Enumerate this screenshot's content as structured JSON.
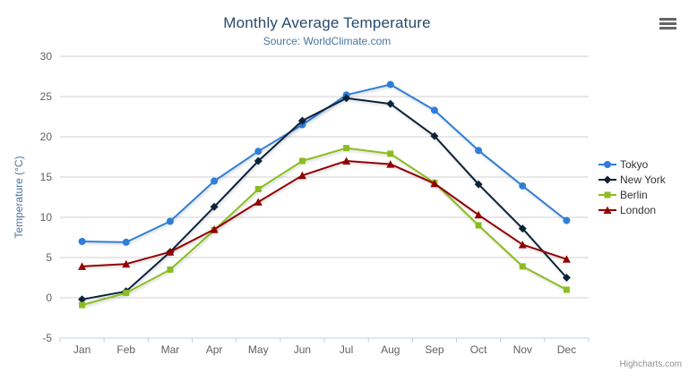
{
  "chart_data": {
    "type": "line",
    "title": "Monthly Average Temperature",
    "subtitle": "Source: WorldClimate.com",
    "xlabel": "",
    "ylabel": "Temperature (°C)",
    "categories": [
      "Jan",
      "Feb",
      "Mar",
      "Apr",
      "May",
      "Jun",
      "Jul",
      "Aug",
      "Sep",
      "Oct",
      "Nov",
      "Dec"
    ],
    "ylim": [
      -5,
      30
    ],
    "yticks": [
      -5,
      0,
      5,
      10,
      15,
      20,
      25,
      30
    ],
    "grid": true,
    "legend_position": "right",
    "series": [
      {
        "name": "Tokyo",
        "color": "#2f7ed8",
        "marker": "circle",
        "values": [
          7.0,
          6.9,
          9.5,
          14.5,
          18.2,
          21.5,
          25.2,
          26.5,
          23.3,
          18.3,
          13.9,
          9.6
        ]
      },
      {
        "name": "New York",
        "color": "#0d233a",
        "marker": "diamond",
        "values": [
          -0.2,
          0.8,
          5.7,
          11.3,
          17.0,
          22.0,
          24.8,
          24.1,
          20.1,
          14.1,
          8.6,
          2.5
        ]
      },
      {
        "name": "Berlin",
        "color": "#8bbc21",
        "marker": "square",
        "values": [
          -0.9,
          0.6,
          3.5,
          8.4,
          13.5,
          17.0,
          18.6,
          17.9,
          14.3,
          9.0,
          3.9,
          1.0
        ]
      },
      {
        "name": "London",
        "color": "#910000",
        "marker": "triangle",
        "values": [
          3.9,
          4.2,
          5.7,
          8.5,
          11.9,
          15.2,
          17.0,
          16.6,
          14.2,
          10.3,
          6.6,
          4.8
        ]
      }
    ]
  },
  "colors": {
    "title": "#274b6d",
    "subtitle": "#4d759e",
    "axis_label": "#606060",
    "yaxis_title": "#4d759e",
    "gridline": "#d2d2d2",
    "axis_line": "#c0d0e0",
    "legend_text": "#333333",
    "credits": "#909090",
    "menu_icon": "#666666"
  },
  "credits": {
    "label": "Highcharts.com"
  }
}
